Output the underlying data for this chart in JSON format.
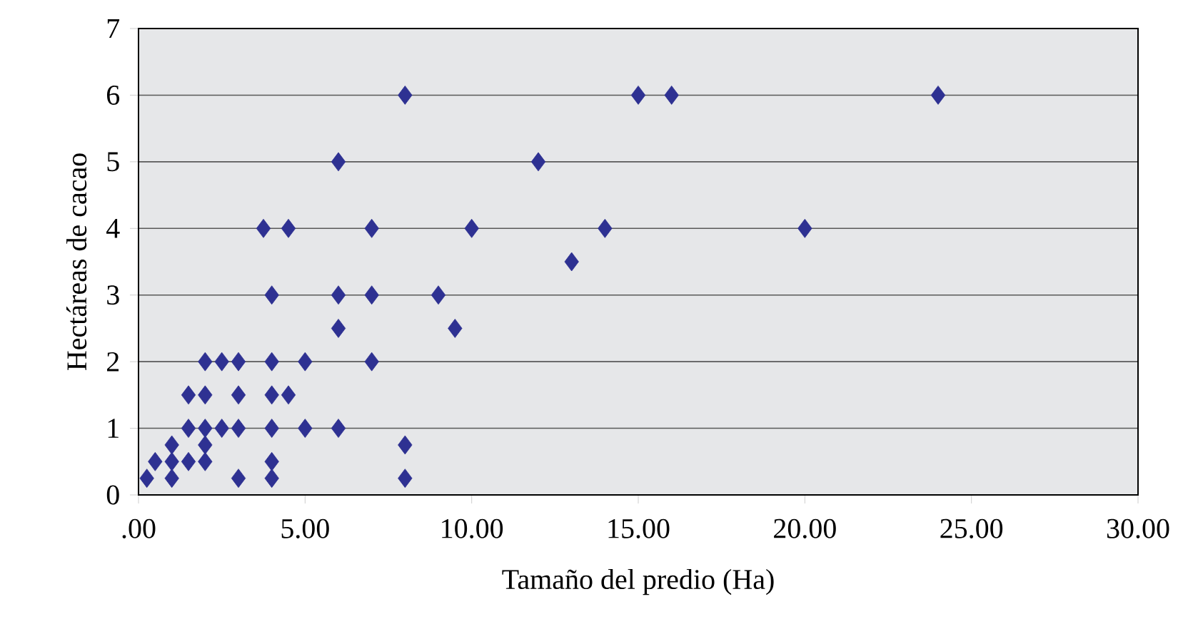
{
  "chart_data": {
    "type": "scatter",
    "xlabel": "Tamaño del predio (Ha)",
    "ylabel": "Hectáreas de cacao",
    "x": [
      8,
      15,
      16,
      24,
      6,
      12,
      3.75,
      4.5,
      7,
      10,
      14,
      20,
      13,
      4,
      6,
      7,
      9,
      6,
      9.5,
      2,
      2.5,
      3,
      4,
      5,
      7,
      1.5,
      2,
      3,
      4,
      4.5,
      1.5,
      2,
      2.5,
      3,
      4,
      5,
      6,
      1,
      2,
      8,
      0.5,
      1,
      1.5,
      2,
      4,
      0.25,
      1,
      3,
      4,
      8
    ],
    "values": [
      6,
      6,
      6,
      6,
      5,
      5,
      4,
      4,
      4,
      4,
      4,
      4,
      3.5,
      3,
      3,
      3,
      3,
      2.5,
      2.5,
      2,
      2,
      2,
      2,
      2,
      2,
      1.5,
      1.5,
      1.5,
      1.5,
      1.5,
      1,
      1,
      1,
      1,
      1,
      1,
      1,
      0.75,
      0.75,
      0.75,
      0.5,
      0.5,
      0.5,
      0.5,
      0.5,
      0.25,
      0.25,
      0.25,
      0.25,
      0.25
    ],
    "color": "#2e3192",
    "marker": "diamond",
    "xlim": [
      0,
      30
    ],
    "ylim": [
      0,
      7
    ],
    "xticks": [
      {
        "value": 0,
        "label": ".00"
      },
      {
        "value": 5,
        "label": "5.00"
      },
      {
        "value": 10,
        "label": "10.00"
      },
      {
        "value": 15,
        "label": "15.00"
      },
      {
        "value": 20,
        "label": "20.00"
      },
      {
        "value": 25,
        "label": "25.00"
      },
      {
        "value": 30,
        "label": "30.00"
      }
    ],
    "yticks": [
      0,
      1,
      2,
      3,
      4,
      5,
      6,
      7
    ],
    "grid": "y"
  }
}
